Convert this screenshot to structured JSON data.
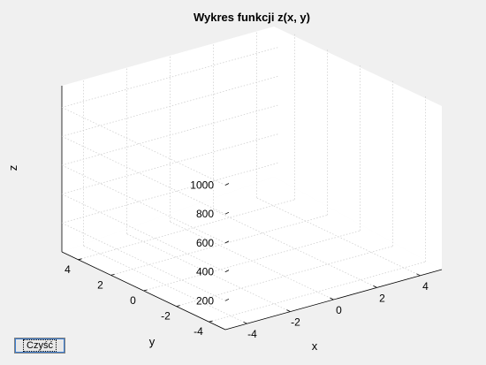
{
  "window": {
    "background": "#f0f0f0"
  },
  "chart_data": {
    "type": "surface3d",
    "title": "Wykres funkcji z(x, y)",
    "xlabel": "x",
    "ylabel": "y",
    "zlabel": "z",
    "xlim": [
      -5,
      5
    ],
    "ylim": [
      -5,
      5
    ],
    "zlim": [
      0,
      1150
    ],
    "x_ticks": [
      "-4",
      "-2",
      "0",
      "2",
      "4"
    ],
    "y_ticks": [
      "4",
      "2",
      "0",
      "-2",
      "-4"
    ],
    "z_ticks": [
      "200",
      "400",
      "600",
      "800",
      "1000"
    ],
    "grid": true,
    "series": []
  },
  "controls": {
    "clear_button_label": "Czyść"
  }
}
